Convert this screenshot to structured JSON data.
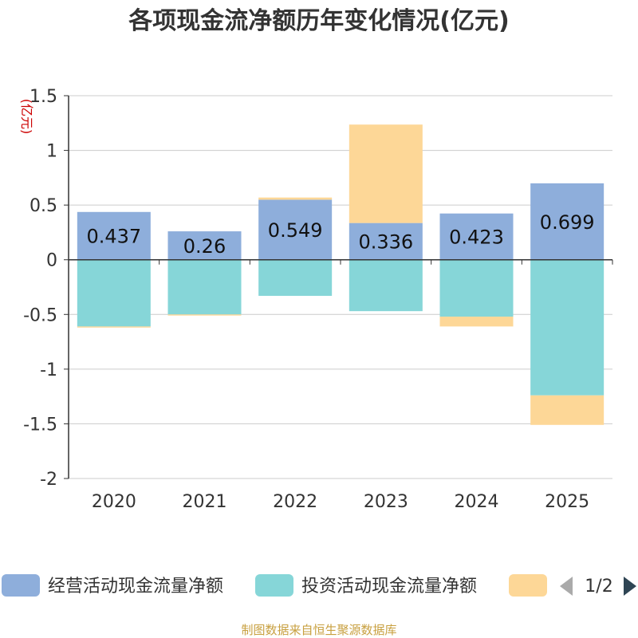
{
  "chart_data": {
    "type": "bar",
    "stacked": true,
    "title": "各项现金流净额历年变化情况(亿元)",
    "ylabel": "(亿元)",
    "ylim": [
      -2,
      1.5
    ],
    "yticks": [
      "1.5",
      "1",
      "0.5",
      "0",
      "-0.5",
      "-1",
      "-1.5",
      "-2"
    ],
    "categories": [
      "2020",
      "2021",
      "2022",
      "2023",
      "2024",
      "2025"
    ],
    "series": [
      {
        "name": "经营活动现金流量净额",
        "color": "#8eaedb",
        "values": [
          0.437,
          0.26,
          0.549,
          0.336,
          0.423,
          0.699
        ]
      },
      {
        "name": "投资活动现金流量净额",
        "color": "#86d6d8",
        "values": [
          -0.61,
          -0.5,
          -0.33,
          -0.47,
          -0.52,
          -1.24
        ]
      },
      {
        "name": "",
        "color": "#fdd797",
        "values": [
          -0.01,
          -0.01,
          0.02,
          0.9,
          -0.09,
          -0.27
        ]
      }
    ],
    "data_labels": [
      "0.437",
      "0.26",
      "0.549",
      "0.336",
      "0.423",
      "0.699"
    ],
    "legend": {
      "position": "bottom",
      "page": "1/2"
    },
    "grid": true
  },
  "footer": {
    "source": "制图数据来自恒生聚源数据库"
  },
  "colors": {
    "axis": "#333333",
    "grid": "#cccccc",
    "ylabel": "#cc0000",
    "source": "#c8a040",
    "pager_active": "#2f4554",
    "pager_inactive": "#aaaaaa"
  }
}
